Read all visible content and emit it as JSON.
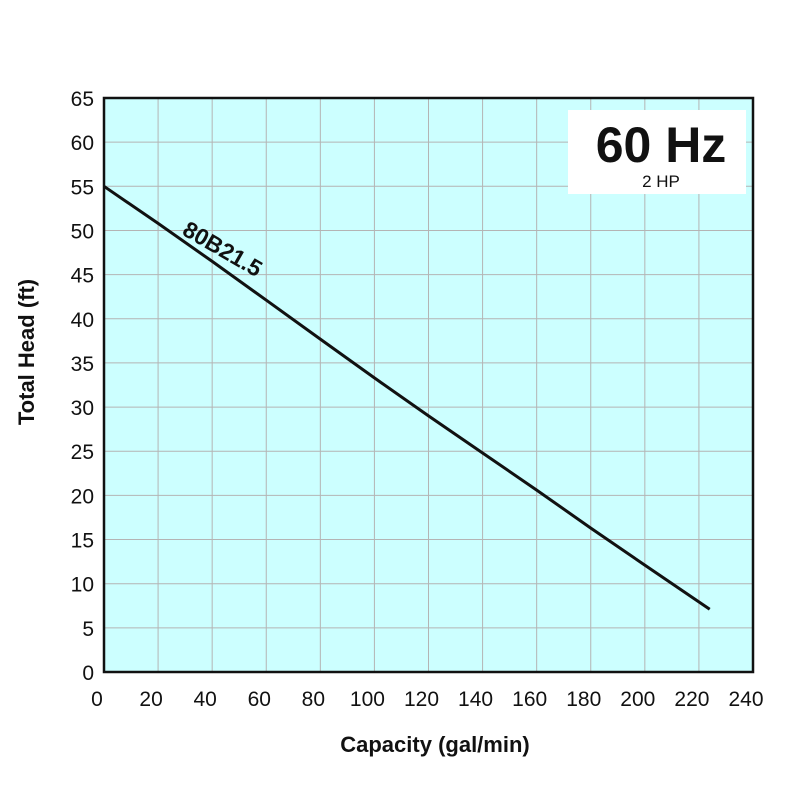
{
  "chart_data": {
    "type": "line",
    "xlabel": "Capacity (gal/min)",
    "ylabel": "Total Head (ft)",
    "xlim": [
      0,
      240
    ],
    "ylim": [
      0,
      65
    ],
    "xticks": [
      0,
      20,
      40,
      60,
      80,
      100,
      120,
      140,
      160,
      180,
      200,
      220,
      240
    ],
    "yticks": [
      0,
      5,
      10,
      15,
      20,
      25,
      30,
      35,
      40,
      45,
      50,
      55,
      60,
      65
    ],
    "grid": true,
    "series": [
      {
        "name": "80B21.5",
        "x": [
          0,
          20,
          40,
          60,
          80,
          100,
          120,
          140,
          160,
          180,
          200,
          224
        ],
        "y": [
          55,
          50.8,
          46.5,
          42.1,
          37.7,
          33.3,
          29.0,
          24.8,
          20.6,
          16.3,
          12.1,
          7.1
        ]
      }
    ],
    "annotations": {
      "frequency": "60 Hz",
      "power": "2 HP"
    },
    "colors": {
      "plot_background": "#ccffff",
      "grid": "#b4b4b4",
      "line": "#111111",
      "frame": "#111111"
    }
  }
}
